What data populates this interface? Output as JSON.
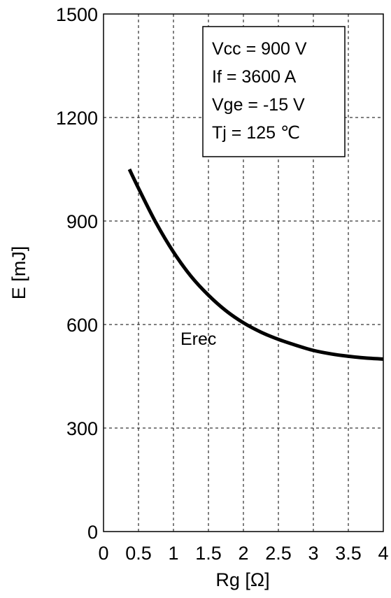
{
  "chart_data": {
    "type": "line",
    "xlabel": "Rg [Ω]",
    "ylabel": "E [mJ]",
    "xlim": [
      0,
      4
    ],
    "ylim": [
      0,
      1500
    ],
    "x_ticks": [
      "0",
      "0.5",
      "1",
      "1.5",
      "2",
      "2.5",
      "3",
      "3.5",
      "4"
    ],
    "y_ticks": [
      "0",
      "300",
      "600",
      "900",
      "1200",
      "1500"
    ],
    "grid": true,
    "conditions": [
      "Vcc = 900 V",
      "If = 3600 A",
      "Vge = -15 V",
      "Tj = 125 ℃"
    ],
    "series": [
      {
        "name": "Erec",
        "color": "#000000",
        "x": [
          0.37,
          0.5,
          0.75,
          1.0,
          1.25,
          1.5,
          1.75,
          2.0,
          2.25,
          2.5,
          2.75,
          3.0,
          3.25,
          3.5,
          3.75,
          4.0
        ],
        "y": [
          1050,
          995,
          895,
          810,
          740,
          685,
          640,
          605,
          578,
          557,
          540,
          525,
          515,
          508,
          503,
          500
        ]
      }
    ]
  }
}
